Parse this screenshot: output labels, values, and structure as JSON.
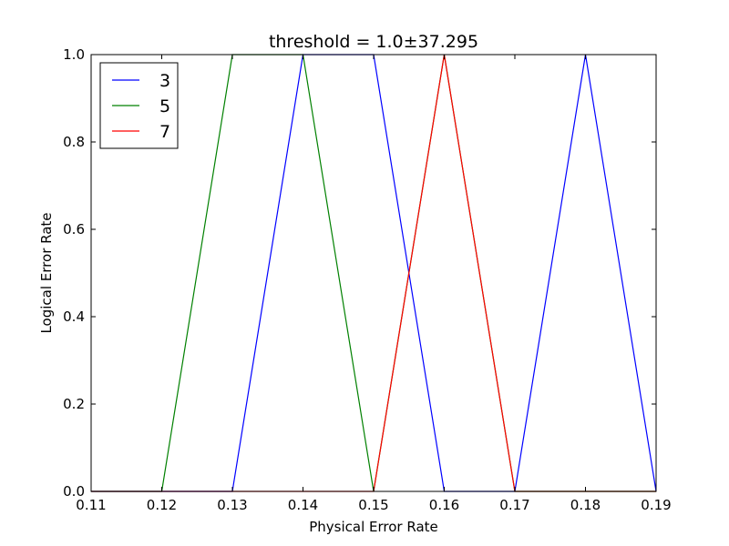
{
  "chart_data": {
    "type": "line",
    "title": "threshold = 1.0±37.295",
    "xlabel": "Physical Error Rate",
    "ylabel": "Logical Error Rate",
    "xlim": [
      0.11,
      0.19
    ],
    "ylim": [
      0.0,
      1.0
    ],
    "x_ticks": [
      "0.11",
      "0.12",
      "0.13",
      "0.14",
      "0.15",
      "0.16",
      "0.17",
      "0.18",
      "0.19"
    ],
    "y_ticks": [
      "0.0",
      "0.2",
      "0.4",
      "0.6",
      "0.8",
      "1.0"
    ],
    "grid": false,
    "legend_position": "top-left",
    "series": [
      {
        "name": "3",
        "color": "#0000ff",
        "x": [
          0.11,
          0.12,
          0.13,
          0.14,
          0.15,
          0.16,
          0.17,
          0.18,
          0.19
        ],
        "y": [
          0.0,
          0.0,
          0.0,
          1.0,
          1.0,
          0.0,
          0.0,
          1.0,
          0.0
        ]
      },
      {
        "name": "5",
        "color": "#008000",
        "x": [
          0.11,
          0.12,
          0.13,
          0.14,
          0.15,
          0.16,
          0.17,
          0.18,
          0.19
        ],
        "y": [
          0.0,
          0.0,
          1.0,
          1.0,
          0.0,
          1.0,
          0.0,
          0.0,
          0.0
        ]
      },
      {
        "name": "7",
        "color": "#ff0000",
        "x": [
          0.11,
          0.12,
          0.13,
          0.14,
          0.15,
          0.16,
          0.17,
          0.18,
          0.19
        ],
        "y": [
          0.0,
          0.0,
          0.0,
          0.0,
          0.0,
          1.0,
          0.0,
          0.0,
          0.0
        ]
      }
    ]
  }
}
